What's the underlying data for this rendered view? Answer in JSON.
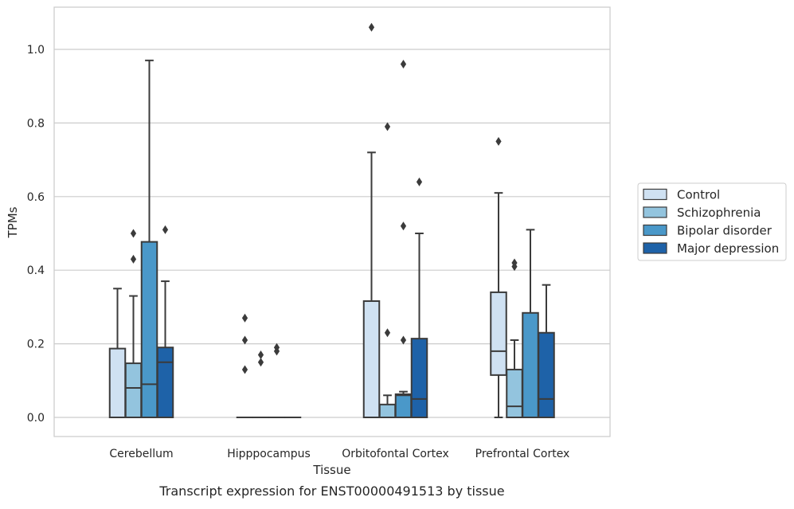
{
  "chart_data": {
    "type": "box",
    "xlabel": "Tissue",
    "ylabel": "TPMs",
    "caption": "Transcript expression for ENST00000491513 by tissue",
    "categories": [
      "Cerebellum",
      "Hipppocampus",
      "Orbitofontal Cortex",
      "Prefrontal Cortex"
    ],
    "ylim": [
      -0.05,
      1.12
    ],
    "yticks": [
      0.0,
      0.2,
      0.4,
      0.6,
      0.8,
      1.0
    ],
    "ytick_labels": [
      "0.0",
      "0.2",
      "0.4",
      "0.6",
      "0.8",
      "1.0"
    ],
    "grid": true,
    "legend_position": "center-right",
    "series": [
      {
        "name": "Control",
        "color": "#cfe1f2",
        "boxes": [
          {
            "q1": 0.0,
            "median": 0.0,
            "q3": 0.187,
            "whislo": 0.0,
            "whishi": 0.35,
            "fliers": []
          },
          {
            "q1": 0.0,
            "median": 0.0,
            "q3": 0.0,
            "whislo": 0.0,
            "whishi": 0.0,
            "fliers": [
              0.13,
              0.21,
              0.27
            ]
          },
          {
            "q1": 0.0,
            "median": 0.0,
            "q3": 0.316,
            "whislo": 0.0,
            "whishi": 0.72,
            "fliers": [
              1.06
            ]
          },
          {
            "q1": 0.115,
            "median": 0.18,
            "q3": 0.34,
            "whislo": 0.0,
            "whishi": 0.61,
            "fliers": [
              0.75
            ]
          }
        ]
      },
      {
        "name": "Schizophrenia",
        "color": "#93c4de",
        "boxes": [
          {
            "q1": 0.0,
            "median": 0.08,
            "q3": 0.147,
            "whislo": 0.0,
            "whishi": 0.33,
            "fliers": [
              0.43,
              0.5
            ]
          },
          {
            "q1": 0.0,
            "median": 0.0,
            "q3": 0.0,
            "whislo": 0.0,
            "whishi": 0.0,
            "fliers": [
              0.15,
              0.17
            ]
          },
          {
            "q1": 0.0,
            "median": 0.0,
            "q3": 0.035,
            "whislo": 0.0,
            "whishi": 0.06,
            "fliers": [
              0.23,
              0.79
            ]
          },
          {
            "q1": 0.0,
            "median": 0.03,
            "q3": 0.13,
            "whislo": 0.0,
            "whishi": 0.21,
            "fliers": [
              0.41,
              0.42
            ]
          }
        ]
      },
      {
        "name": "Bipolar disorder",
        "color": "#4a98c9",
        "boxes": [
          {
            "q1": 0.0,
            "median": 0.09,
            "q3": 0.477,
            "whislo": 0.0,
            "whishi": 0.97,
            "fliers": []
          },
          {
            "q1": 0.0,
            "median": 0.0,
            "q3": 0.0,
            "whislo": 0.0,
            "whishi": 0.0,
            "fliers": [
              0.18,
              0.19
            ]
          },
          {
            "q1": 0.0,
            "median": 0.06,
            "q3": 0.063,
            "whislo": 0.0,
            "whishi": 0.07,
            "fliers": [
              0.21,
              0.52,
              0.96
            ]
          },
          {
            "q1": 0.0,
            "median": 0.0,
            "q3": 0.284,
            "whislo": 0.0,
            "whishi": 0.51,
            "fliers": []
          }
        ]
      },
      {
        "name": "Major depression",
        "color": "#1e62a8",
        "boxes": [
          {
            "q1": 0.0,
            "median": 0.15,
            "q3": 0.19,
            "whislo": 0.0,
            "whishi": 0.37,
            "fliers": [
              0.51
            ]
          },
          {
            "q1": 0.0,
            "median": 0.0,
            "q3": 0.0,
            "whislo": 0.0,
            "whishi": 0.0,
            "fliers": []
          },
          {
            "q1": 0.0,
            "median": 0.05,
            "q3": 0.214,
            "whislo": 0.0,
            "whishi": 0.5,
            "fliers": [
              0.64
            ]
          },
          {
            "q1": 0.0,
            "median": 0.05,
            "q3": 0.23,
            "whislo": 0.0,
            "whishi": 0.36,
            "fliers": []
          }
        ]
      }
    ]
  }
}
